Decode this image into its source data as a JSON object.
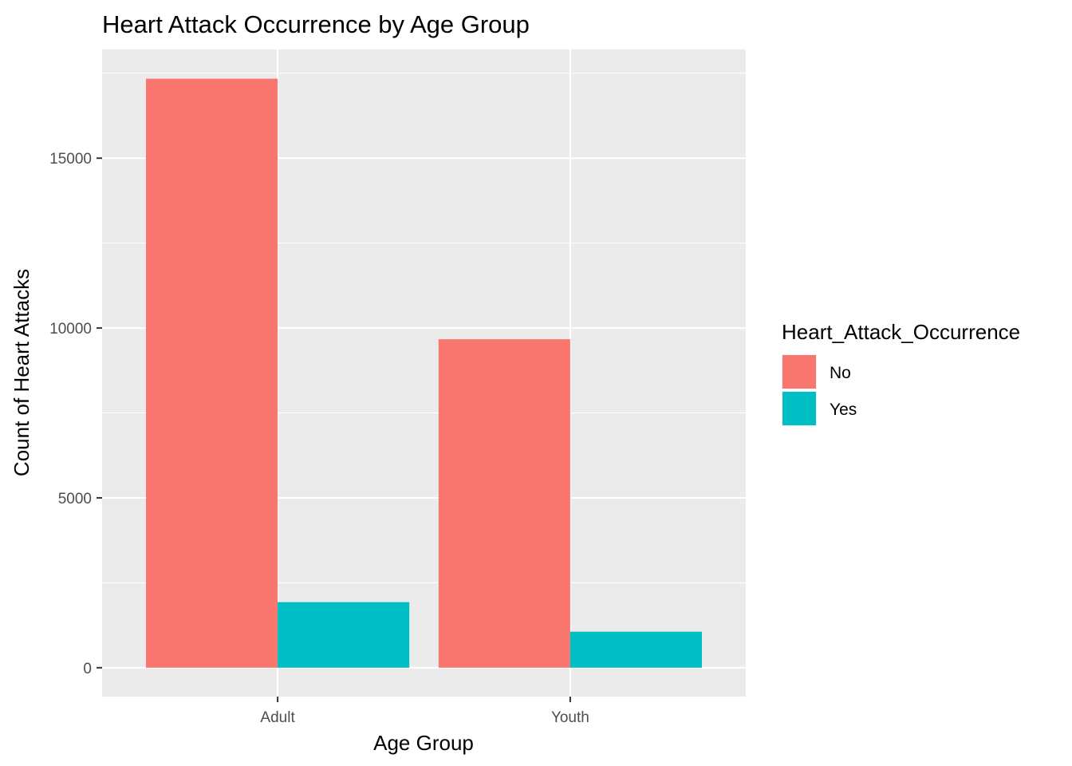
{
  "chart_data": {
    "type": "bar",
    "title": "Heart Attack Occurrence by Age Group",
    "xlabel": "Age Group",
    "ylabel": "Count of Heart Attacks",
    "categories": [
      "Adult",
      "Youth"
    ],
    "series": [
      {
        "name": "No",
        "color": "#F8766D",
        "values": [
          17340,
          9670
        ]
      },
      {
        "name": "Yes",
        "color": "#00BFC4",
        "values": [
          1930,
          1060
        ]
      }
    ],
    "yticks": [
      0,
      5000,
      10000,
      15000
    ],
    "ylim": [
      -850,
      18200
    ],
    "legend": {
      "title": "Heart_Attack_Occurrence",
      "position": "right"
    },
    "grid": true,
    "panel_background": "#EBEBEB",
    "grid_color": "#FFFFFF"
  }
}
